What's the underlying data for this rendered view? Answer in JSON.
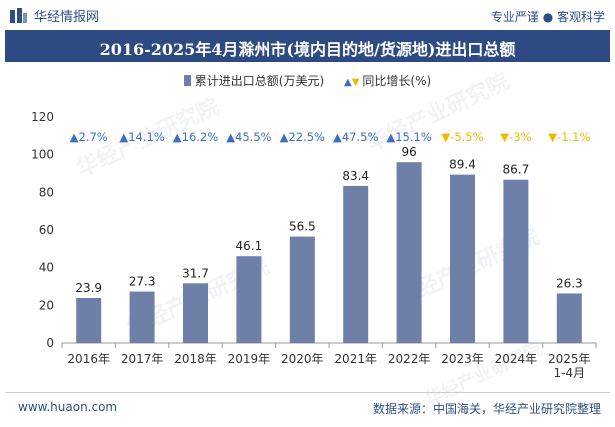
{
  "brand": {
    "name": "华经情报网",
    "tagline": "专业严谨 ● 客观科学"
  },
  "title": "2016-2025年4月滁州市(境内目的地/货源地)进出口总额",
  "legend": {
    "bar_label": "累计进出口总额(万美元)",
    "growth_label": "同比增长(%)"
  },
  "watermark": {
    "text": "华经产业研究院",
    "url": "www.huaon.com"
  },
  "footer": {
    "site": "www.huaon.com",
    "source": "数据来源：中国海关，华经产业研究院整理"
  },
  "colors": {
    "bar": "#6e7fa8",
    "up": "#3a6fc4",
    "down": "#f5b800",
    "title_bg": "#2d4a82"
  },
  "chart_data": {
    "type": "bar",
    "categories": [
      "2016年",
      "2017年",
      "2018年",
      "2019年",
      "2020年",
      "2021年",
      "2022年",
      "2023年",
      "2024年",
      "2025年\n1-4月"
    ],
    "series": [
      {
        "name": "累计进出口总额(万美元)",
        "values": [
          23.9,
          27.3,
          31.7,
          46.1,
          56.5,
          83.4,
          96,
          89.4,
          86.7,
          26.3
        ],
        "labels": [
          "23.9",
          "27.3",
          "31.7",
          "46.1",
          "56.5",
          "83.4",
          "96",
          "89.4",
          "86.7",
          "26.3"
        ]
      },
      {
        "name": "同比增长(%)",
        "values": [
          2.7,
          14.1,
          16.2,
          45.5,
          22.5,
          47.5,
          15.1,
          -5.5,
          -3,
          -1.1
        ],
        "labels": [
          "2.7%",
          "14.1%",
          "16.2%",
          "45.5%",
          "22.5%",
          "47.5%",
          "15.1%",
          "-5.5%",
          "-3%",
          "-1.1%"
        ]
      }
    ],
    "ylim": [
      0,
      120
    ],
    "yticks": [
      0,
      20,
      40,
      60,
      80,
      100,
      120
    ],
    "legend_position": "top"
  }
}
